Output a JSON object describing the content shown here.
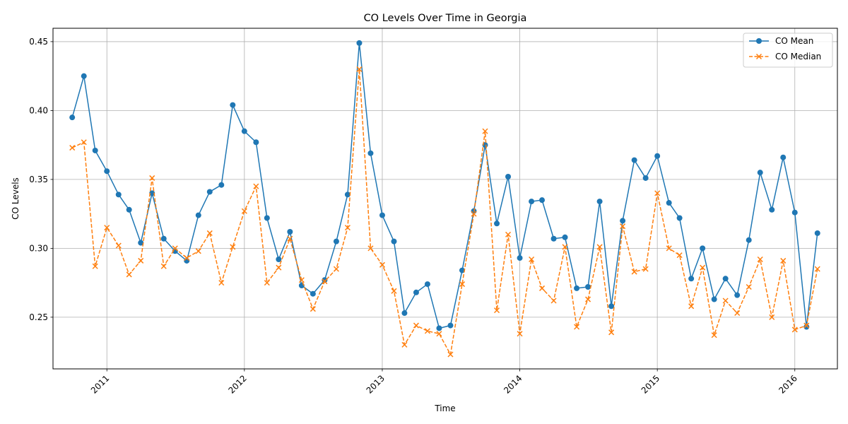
{
  "chart_data": {
    "type": "line",
    "title": "CO Levels Over Time in Georgia",
    "xlabel": "Time",
    "ylabel": "CO Levels",
    "xlim": [
      "2010-08-11",
      "2016-04-23"
    ],
    "ylim": [
      0.2125,
      0.4597
    ],
    "x_ticks": [
      "2011",
      "2012",
      "2013",
      "2014",
      "2015",
      "2016"
    ],
    "x_tick_dates": [
      "2011-01-01",
      "2012-01-01",
      "2013-01-01",
      "2014-01-01",
      "2015-01-01",
      "2016-01-01"
    ],
    "y_ticks": [
      "0.25",
      "0.30",
      "0.35",
      "0.40",
      "0.45"
    ],
    "grid": true,
    "legend_position": "top-right",
    "x": [
      "2010-10-01",
      "2010-11-01",
      "2010-12-01",
      "2011-01-01",
      "2011-02-01",
      "2011-03-01",
      "2011-04-01",
      "2011-05-01",
      "2011-06-01",
      "2011-07-01",
      "2011-08-01",
      "2011-09-01",
      "2011-10-01",
      "2011-11-01",
      "2011-12-01",
      "2012-01-01",
      "2012-02-01",
      "2012-03-01",
      "2012-04-01",
      "2012-05-01",
      "2012-06-01",
      "2012-07-01",
      "2012-08-01",
      "2012-09-01",
      "2012-10-01",
      "2012-11-01",
      "2012-12-01",
      "2013-01-01",
      "2013-02-01",
      "2013-03-01",
      "2013-04-01",
      "2013-05-01",
      "2013-06-01",
      "2013-07-01",
      "2013-08-01",
      "2013-09-01",
      "2013-10-01",
      "2013-11-01",
      "2013-12-01",
      "2014-01-01",
      "2014-02-01",
      "2014-03-01",
      "2014-04-01",
      "2014-05-01",
      "2014-06-01",
      "2014-07-01",
      "2014-08-01",
      "2014-09-01",
      "2014-10-01",
      "2014-11-01",
      "2014-12-01",
      "2015-01-01",
      "2015-02-01",
      "2015-03-01",
      "2015-04-01",
      "2015-05-01",
      "2015-06-01",
      "2015-07-01",
      "2015-08-01",
      "2015-09-01",
      "2015-10-01",
      "2015-11-01",
      "2015-12-01",
      "2016-01-01",
      "2016-02-01",
      "2016-03-01"
    ],
    "series": [
      {
        "name": "CO Mean",
        "color": "#1f77b4",
        "style": "solid",
        "marker": "circle",
        "values": [
          0.395,
          0.425,
          0.371,
          0.356,
          0.339,
          0.328,
          0.304,
          0.34,
          0.307,
          0.298,
          0.291,
          0.324,
          0.341,
          0.346,
          0.404,
          0.385,
          0.377,
          0.322,
          0.292,
          0.312,
          0.273,
          0.267,
          0.277,
          0.305,
          0.339,
          0.449,
          0.369,
          0.324,
          0.305,
          0.253,
          0.268,
          0.274,
          0.242,
          0.244,
          0.284,
          0.327,
          0.375,
          0.318,
          0.352,
          0.293,
          0.334,
          0.335,
          0.307,
          0.308,
          0.271,
          0.272,
          0.334,
          0.258,
          0.32,
          0.364,
          0.351,
          0.367,
          0.333,
          0.322,
          0.278,
          0.3,
          0.263,
          0.278,
          0.266,
          0.306,
          0.355,
          0.328,
          0.366,
          0.326,
          0.243,
          0.311
        ]
      },
      {
        "name": "CO Median",
        "color": "#ff7f0e",
        "style": "dashed",
        "marker": "x",
        "values": [
          0.373,
          0.377,
          0.287,
          0.315,
          0.302,
          0.281,
          0.291,
          0.351,
          0.287,
          0.3,
          0.293,
          0.298,
          0.311,
          0.275,
          0.301,
          0.327,
          0.345,
          0.275,
          0.286,
          0.307,
          0.277,
          0.256,
          0.276,
          0.285,
          0.315,
          0.43,
          0.3,
          0.288,
          0.269,
          0.23,
          0.244,
          0.24,
          0.238,
          0.223,
          0.274,
          0.325,
          0.385,
          0.255,
          0.31,
          0.238,
          0.292,
          0.271,
          0.262,
          0.301,
          0.243,
          0.263,
          0.301,
          0.239,
          0.316,
          0.283,
          0.285,
          0.34,
          0.3,
          0.295,
          0.258,
          0.286,
          0.237,
          0.262,
          0.253,
          0.272,
          0.292,
          0.25,
          0.291,
          0.241,
          0.244,
          0.285
        ]
      }
    ]
  }
}
